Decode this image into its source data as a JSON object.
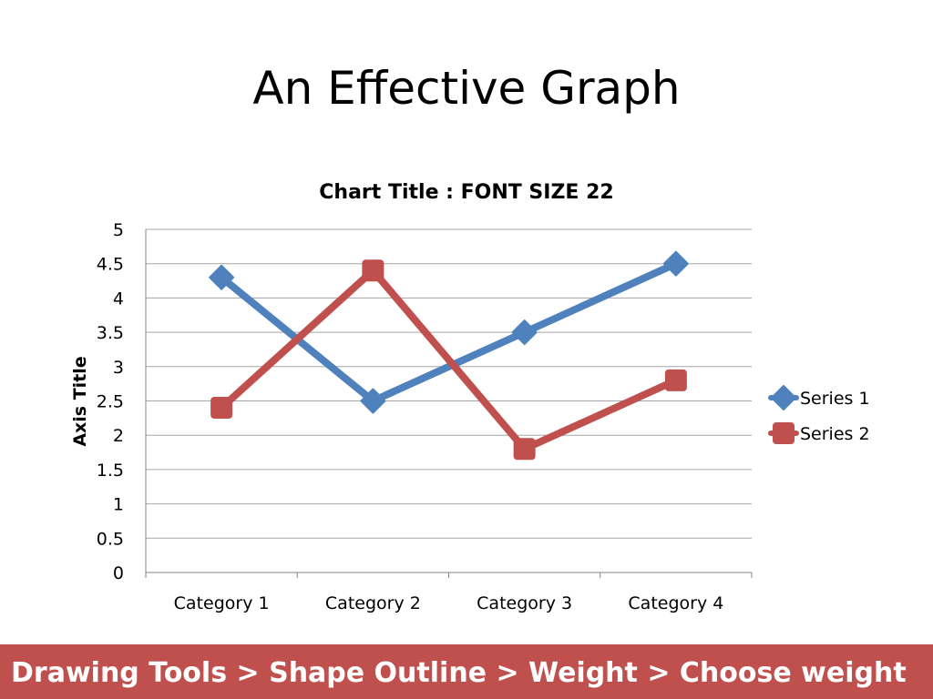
{
  "slide": {
    "title": "An Effective Graph",
    "footer": "Drawing Tools > Shape Outline > Weight > Choose weight",
    "footer_color": "#c0504d"
  },
  "chart_data": {
    "type": "line",
    "title": "Chart Title : FONT SIZE 22",
    "xlabel": "",
    "ylabel": "Axis Title",
    "categories": [
      "Category 1",
      "Category 2",
      "Category 3",
      "Category 4"
    ],
    "ylim": [
      0,
      5
    ],
    "yticks": [
      0,
      0.5,
      1,
      1.5,
      2,
      2.5,
      3,
      3.5,
      4,
      4.5,
      5
    ],
    "ytick_labels": [
      "0",
      "0.5",
      "1",
      "1.5",
      "2",
      "2.5",
      "3",
      "3.5",
      "4",
      "4.5",
      "5"
    ],
    "grid": true,
    "legend_position": "right",
    "series": [
      {
        "name": "Series 1",
        "values": [
          4.3,
          2.5,
          3.5,
          4.5
        ],
        "color": "#4f81bd",
        "marker": "diamond"
      },
      {
        "name": "Series 2",
        "values": [
          2.4,
          4.4,
          1.8,
          2.8
        ],
        "color": "#c0504d",
        "marker": "square"
      }
    ]
  }
}
